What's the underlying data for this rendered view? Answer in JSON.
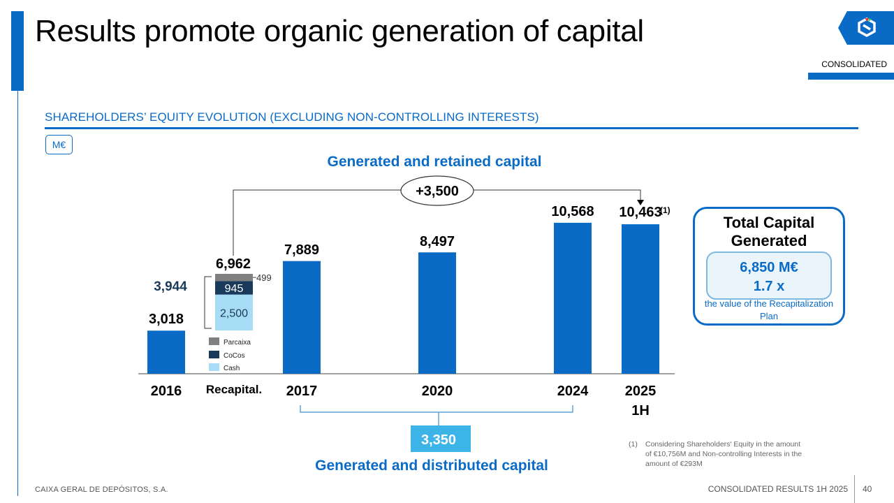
{
  "page": {
    "title": "Results promote organic generation of capital",
    "tag": "CONSOLIDATED",
    "section_title": "SHAREHOLDERS’ EQUITY EVOLUTION (EXCLUDING NON-CONTROLLING INTERESTS)",
    "unit": "M€",
    "footer_left": "CAIXA GERAL DE DEPÓSITOS, S.A.",
    "footer_right": "CONSOLIDATED RESULTS 1H 2025",
    "page_number": "40",
    "logo_icon": "cgd-logo-icon",
    "colors": {
      "accent": "#0a6bc7",
      "dark": "#1a3a5c",
      "light": "#a7dcf5",
      "grey": "#808080",
      "cyan": "#3db4e8"
    }
  },
  "total_capital": {
    "title": "Total Capital Generated",
    "amount": "6,850 M€",
    "multiple": "1.7 x",
    "note": "the value of the Recapitalization Plan"
  },
  "footnote": {
    "mark": "(1)",
    "text": "Considering Shareholders' Equity in the amount of €10,756M and Non-controlling Interests in the amount of €293M"
  },
  "chart_data": {
    "type": "bar",
    "categories": [
      "2016",
      "Recapital.",
      "2017",
      "2020",
      "2024",
      "2025 1H"
    ],
    "values": [
      3018,
      6962,
      7889,
      8497,
      10568,
      10463
    ],
    "value_labels": [
      "3,018",
      "6,962",
      "7,889",
      "8,497",
      "10,568",
      "10,463"
    ],
    "footnote_marker": "(1)",
    "recap_stack": {
      "components": [
        {
          "name": "Cash",
          "value": 2500,
          "label": "2,500"
        },
        {
          "name": "CoCos",
          "value": 945,
          "label": "945"
        },
        {
          "name": "Parcaixa",
          "value": 499,
          "label": "499"
        }
      ],
      "total_label": "3,944"
    },
    "legend": [
      "Parcaixa",
      "CoCos",
      "Cash"
    ],
    "generated_retained": {
      "title": "Generated and retained capital",
      "value": "+3,500"
    },
    "generated_distributed": {
      "title": "Generated and distributed capital",
      "value": "3,350"
    }
  }
}
